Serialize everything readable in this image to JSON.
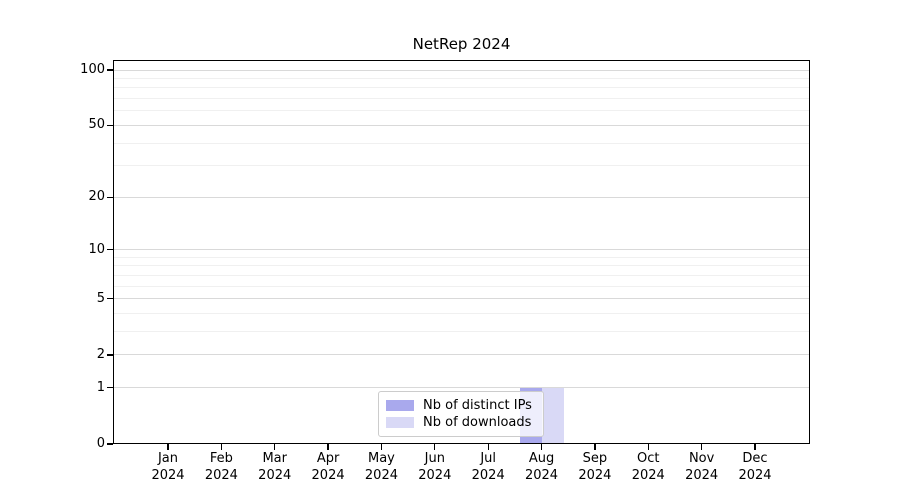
{
  "chart_data": {
    "type": "bar",
    "title": "NetRep 2024",
    "categories": [
      "Jan 2024",
      "Feb 2024",
      "Mar 2024",
      "Apr 2024",
      "May 2024",
      "Jun 2024",
      "Jul 2024",
      "Aug 2024",
      "Sep 2024",
      "Oct 2024",
      "Nov 2024",
      "Dec 2024"
    ],
    "x_tick_month": [
      "Jan",
      "Feb",
      "Mar",
      "Apr",
      "May",
      "Jun",
      "Jul",
      "Aug",
      "Sep",
      "Oct",
      "Nov",
      "Dec"
    ],
    "x_tick_year": "2024",
    "series": [
      {
        "name": "Nb of distinct IPs",
        "color": "#a9a9ed",
        "values": [
          0,
          0,
          0,
          0,
          0,
          0,
          0,
          1,
          0,
          0,
          0,
          0
        ]
      },
      {
        "name": "Nb of downloads",
        "color": "#d9d9f6",
        "values": [
          0,
          0,
          0,
          0,
          0,
          0,
          0,
          1,
          0,
          0,
          0,
          0
        ]
      }
    ],
    "xlabel": "",
    "ylabel": "",
    "yscale": "log1p",
    "ylim": [
      0,
      113
    ],
    "y_major_ticks": [
      0,
      1,
      2,
      5,
      10,
      20,
      50,
      100
    ],
    "y_minor_ticks": [
      3,
      4,
      6,
      7,
      8,
      9,
      30,
      40,
      60,
      70,
      80,
      90
    ],
    "grid": "horizontal",
    "legend_position": "lower center",
    "colors": {
      "grid_major": "#d9d9d9",
      "grid_minor": "#f0f0f0",
      "spine": "#000000",
      "legend_border": "#cccccc",
      "background": "#ffffff"
    }
  }
}
